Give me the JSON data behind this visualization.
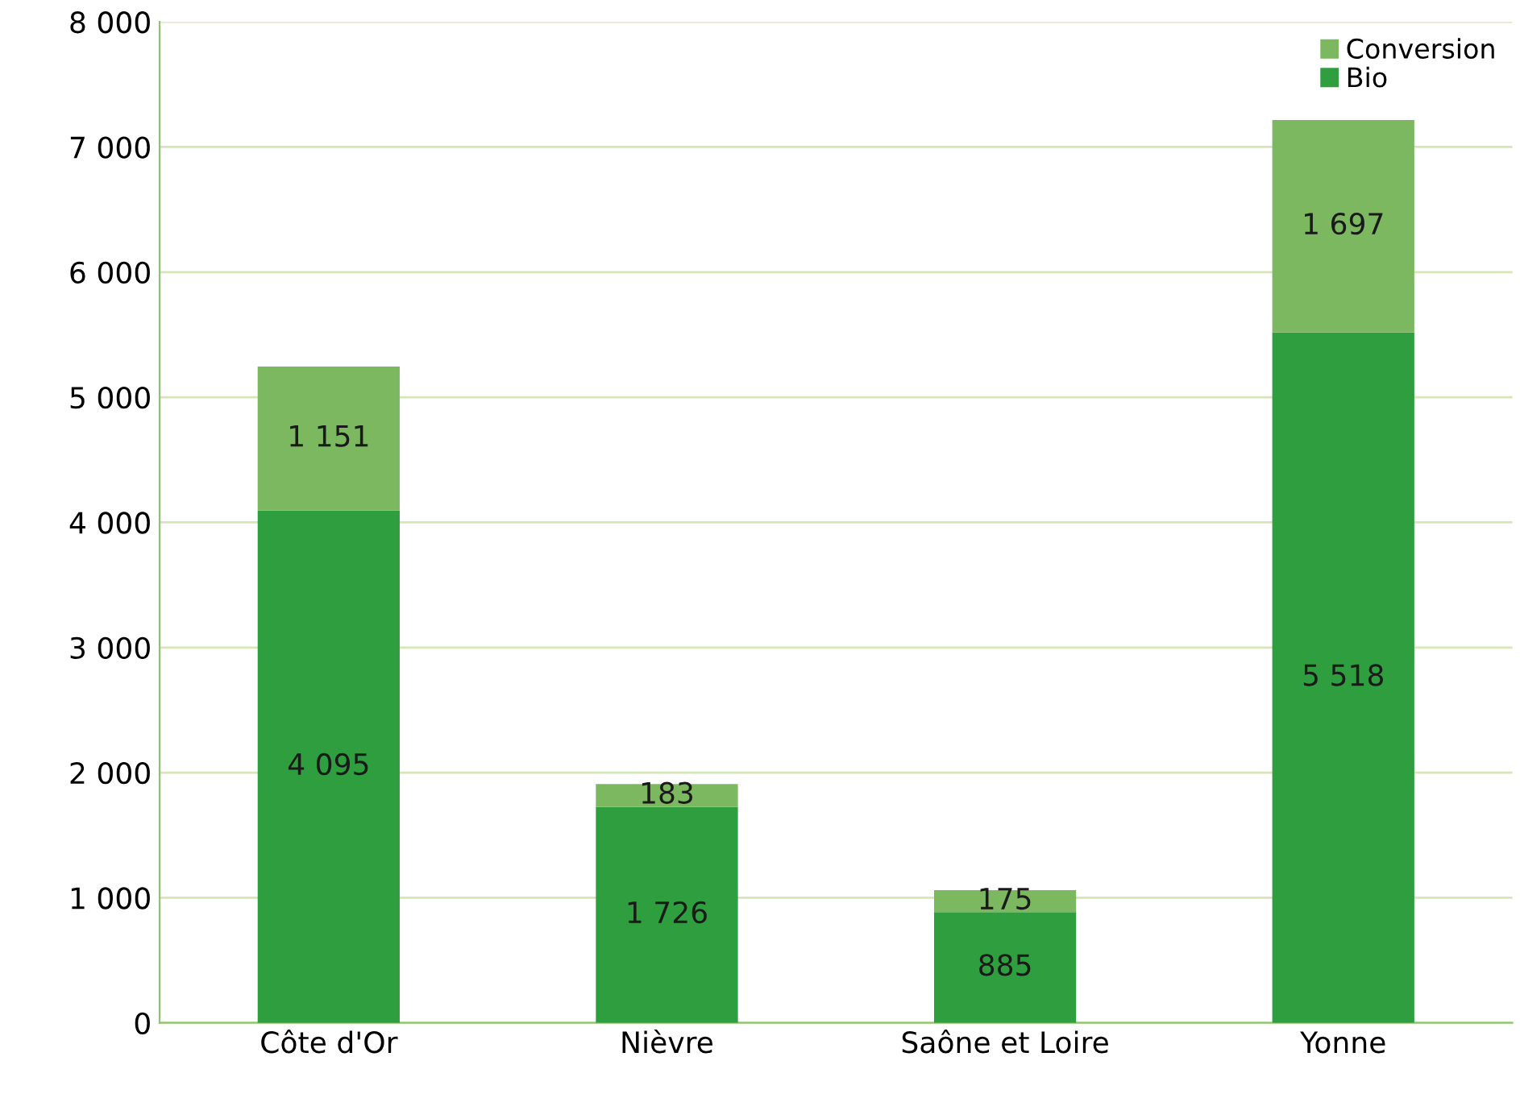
{
  "chart_data": {
    "type": "bar",
    "stacked": true,
    "categories": [
      "Côte d'Or",
      "Nièvre",
      "Saône et Loire",
      "Yonne"
    ],
    "series": [
      {
        "name": "Bio",
        "color": "#2e9e3e",
        "values": [
          4095,
          1726,
          885,
          5518
        ],
        "value_labels": [
          "4 095",
          "1 726",
          "885",
          "5 518"
        ]
      },
      {
        "name": "Conversion",
        "color": "#7bb860",
        "values": [
          1151,
          183,
          175,
          1697
        ],
        "value_labels": [
          "1 151",
          "183",
          "175",
          "1 697"
        ]
      }
    ],
    "ylim": [
      0,
      8000
    ],
    "yticks": [
      {
        "value": 0,
        "label": "0"
      },
      {
        "value": 1000,
        "label": "1 000"
      },
      {
        "value": 2000,
        "label": "2 000"
      },
      {
        "value": 3000,
        "label": "3 000"
      },
      {
        "value": 4000,
        "label": "4 000"
      },
      {
        "value": 5000,
        "label": "5 000"
      },
      {
        "value": 6000,
        "label": "6 000"
      },
      {
        "value": 7000,
        "label": "7 000"
      },
      {
        "value": 8000,
        "label": "8 000"
      }
    ],
    "grid": "y",
    "legend": "top right"
  }
}
